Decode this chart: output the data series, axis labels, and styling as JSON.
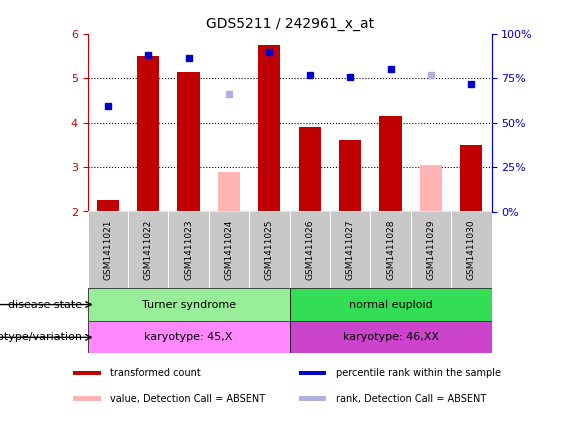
{
  "title": "GDS5211 / 242961_x_at",
  "samples": [
    "GSM1411021",
    "GSM1411022",
    "GSM1411023",
    "GSM1411024",
    "GSM1411025",
    "GSM1411026",
    "GSM1411027",
    "GSM1411028",
    "GSM1411029",
    "GSM1411030"
  ],
  "transformed_count": [
    2.25,
    5.5,
    5.15,
    null,
    5.75,
    3.9,
    3.6,
    4.15,
    null,
    3.5
  ],
  "absent_value": [
    null,
    null,
    null,
    2.9,
    null,
    null,
    null,
    null,
    3.05,
    null
  ],
  "percentile_rank": [
    4.38,
    5.52,
    5.45,
    null,
    5.6,
    5.08,
    5.02,
    5.2,
    null,
    4.88
  ],
  "absent_rank": [
    null,
    null,
    null,
    4.65,
    null,
    null,
    null,
    null,
    5.08,
    null
  ],
  "ylim": [
    2.0,
    6.0
  ],
  "yticks": [
    2,
    3,
    4,
    5,
    6
  ],
  "right_yticks": [
    0,
    25,
    50,
    75,
    100
  ],
  "bar_color": "#C00000",
  "absent_bar_color": "#FFB3B3",
  "rank_color": "#0000CC",
  "absent_rank_color": "#B0B0E0",
  "left_axis_color": "#CC0000",
  "right_axis_color": "#0000CC",
  "disease_state_groups": [
    {
      "label": "Turner syndrome",
      "start": 0,
      "end": 5,
      "color": "#99EE99"
    },
    {
      "label": "normal euploid",
      "start": 5,
      "end": 10,
      "color": "#33DD55"
    }
  ],
  "genotype_groups": [
    {
      "label": "karyotype: 45,X",
      "start": 0,
      "end": 5,
      "color": "#FF88FF"
    },
    {
      "label": "karyotype: 46,XX",
      "start": 5,
      "end": 10,
      "color": "#CC44CC"
    }
  ],
  "bar_width": 0.55,
  "gray_bg": "#C8C8C8",
  "legend_items": [
    {
      "label": "transformed count",
      "color": "#C00000"
    },
    {
      "label": "percentile rank within the sample",
      "color": "#0000CC"
    },
    {
      "label": "value, Detection Call = ABSENT",
      "color": "#FFB3B3"
    },
    {
      "label": "rank, Detection Call = ABSENT",
      "color": "#B0B0E0"
    }
  ]
}
